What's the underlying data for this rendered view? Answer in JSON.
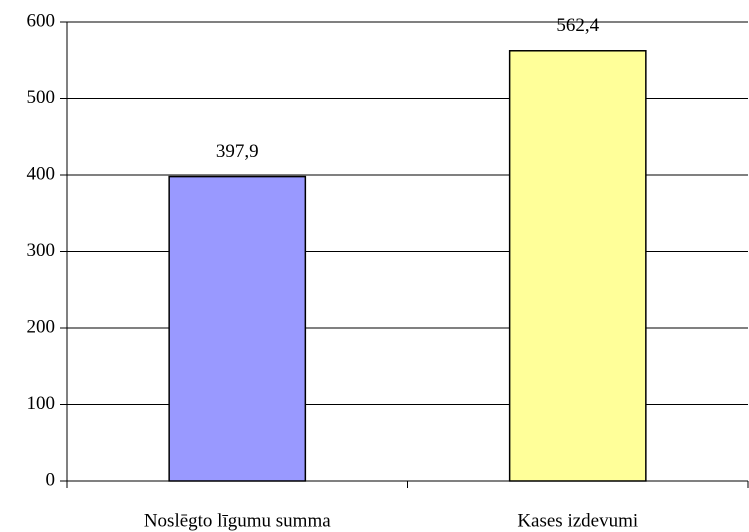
{
  "chart_data": {
    "type": "bar",
    "categories": [
      "Noslēgto līgumu summa",
      "Kases izdevumi"
    ],
    "values": [
      397.9,
      562.4
    ],
    "value_labels": [
      "397,9",
      "562,4"
    ],
    "colors": [
      "#9999ff",
      "#ffff99"
    ],
    "ylim": [
      0,
      600
    ],
    "yticks": [
      0,
      100,
      200,
      300,
      400,
      500,
      600
    ],
    "grid": true
  }
}
